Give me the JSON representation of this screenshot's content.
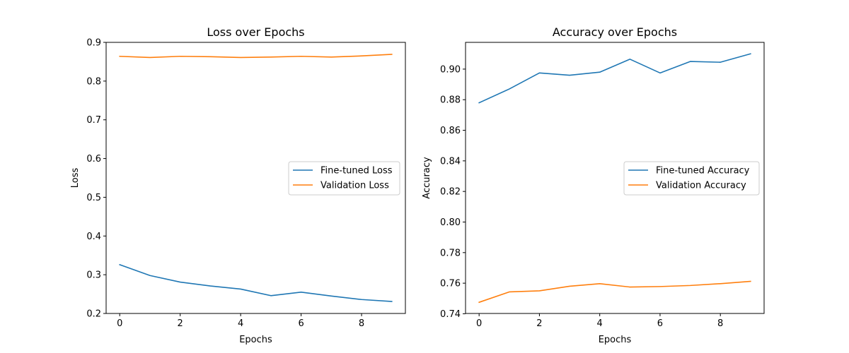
{
  "chart_data": [
    {
      "type": "line",
      "title": "Loss over Epochs",
      "xlabel": "Epochs",
      "ylabel": "Loss",
      "xlim": [
        -0.45,
        9.45
      ],
      "ylim": [
        0.2,
        0.9
      ],
      "xticks": [
        0,
        2,
        4,
        6,
        8
      ],
      "xtick_labels": [
        "0",
        "2",
        "4",
        "6",
        "8"
      ],
      "yticks": [
        0.2,
        0.3,
        0.4,
        0.5,
        0.6,
        0.7,
        0.8,
        0.9
      ],
      "ytick_labels": [
        "0.2",
        "0.3",
        "0.4",
        "0.5",
        "0.6",
        "0.7",
        "0.8",
        "0.9"
      ],
      "legend_position": "center-right",
      "x": [
        0,
        1,
        2,
        3,
        4,
        5,
        6,
        7,
        8,
        9
      ],
      "series": [
        {
          "name": "Fine-tuned Loss",
          "color": "#1f77b4",
          "values": [
            0.326,
            0.298,
            0.281,
            0.271,
            0.263,
            0.246,
            0.255,
            0.245,
            0.236,
            0.231
          ]
        },
        {
          "name": "Validation Loss",
          "color": "#ff7f0e",
          "values": [
            0.864,
            0.861,
            0.864,
            0.863,
            0.861,
            0.862,
            0.864,
            0.862,
            0.865,
            0.869
          ]
        }
      ]
    },
    {
      "type": "line",
      "title": "Accuracy over Epochs",
      "xlabel": "Epochs",
      "ylabel": "Accuracy",
      "xlim": [
        -0.45,
        9.45
      ],
      "ylim": [
        0.7402,
        0.9175
      ],
      "xticks": [
        0,
        2,
        4,
        6,
        8
      ],
      "xtick_labels": [
        "0",
        "2",
        "4",
        "6",
        "8"
      ],
      "yticks": [
        0.74,
        0.76,
        0.78,
        0.8,
        0.82,
        0.84,
        0.86,
        0.88,
        0.9
      ],
      "ytick_labels": [
        "0.74",
        "0.76",
        "0.78",
        "0.80",
        "0.82",
        "0.84",
        "0.86",
        "0.88",
        "0.90"
      ],
      "legend_position": "center-right",
      "x": [
        0,
        1,
        2,
        3,
        4,
        5,
        6,
        7,
        8,
        9
      ],
      "series": [
        {
          "name": "Fine-tuned Accuracy",
          "color": "#1f77b4",
          "values": [
            0.878,
            0.887,
            0.8975,
            0.896,
            0.898,
            0.9065,
            0.8975,
            0.905,
            0.9045,
            0.91
          ]
        },
        {
          "name": "Validation Accuracy",
          "color": "#ff7f0e",
          "values": [
            0.7475,
            0.7543,
            0.755,
            0.758,
            0.7597,
            0.7575,
            0.7578,
            0.7585,
            0.7597,
            0.7612
          ]
        }
      ]
    }
  ]
}
